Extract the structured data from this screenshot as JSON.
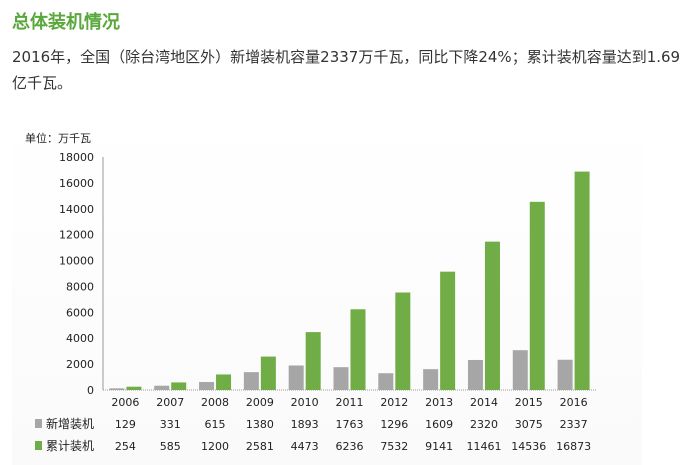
{
  "title": "总体装机情况",
  "paragraph": "2016年，全国（除台湾地区外）新增装机容量2337万千瓦，同比下降24%；累计装机容量达到1.69亿千瓦。",
  "chart_data": {
    "type": "bar",
    "unit_label": "单位：万千瓦",
    "categories": [
      "2006",
      "2007",
      "2008",
      "2009",
      "2010",
      "2011",
      "2012",
      "2013",
      "2014",
      "2015",
      "2016"
    ],
    "series": [
      {
        "name": "新增装机",
        "color": "#a6a6a6",
        "values": [
          129,
          331,
          615,
          1380,
          1893,
          1763,
          1296,
          1609,
          2320,
          3075,
          2337
        ]
      },
      {
        "name": "累计装机",
        "color": "#70ad47",
        "values": [
          254,
          585,
          1200,
          2581,
          4473,
          6236,
          7532,
          9141,
          11461,
          14536,
          16873
        ]
      }
    ],
    "ylim": [
      0,
      18000
    ],
    "yticks": [
      0,
      2000,
      4000,
      6000,
      8000,
      10000,
      12000,
      14000,
      16000,
      18000
    ],
    "legend": "data-table-left"
  }
}
